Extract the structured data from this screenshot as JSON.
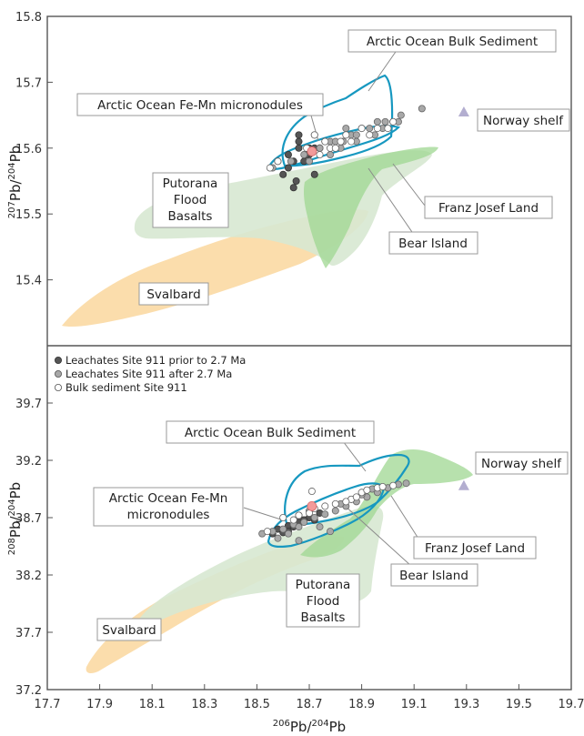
{
  "chart_data": [
    {
      "type": "scatter",
      "panel": "top",
      "ylabel": "207Pb/204Pb",
      "ylabel_parts": [
        "207",
        "Pb/",
        "204",
        "Pb"
      ],
      "xlim": [
        17.7,
        19.7
      ],
      "ylim": [
        15.3,
        15.8
      ],
      "yticks": [
        "15.4",
        "15.5",
        "15.6",
        "15.7",
        "15.8"
      ],
      "labels": {
        "bulk": "Arctic Ocean Bulk Sediment",
        "femn": "Arctic Ocean Fe-Mn micronodules",
        "norway": "Norway shelf",
        "putorana": [
          "Putorana",
          "Flood",
          "Basalts"
        ],
        "franz": "Franz Josef Land",
        "bear": "Bear Island",
        "svalbard": "Svalbard"
      },
      "series": [
        {
          "name": "Leachates Site 911 prior to 2.7 Ma",
          "points": [
            [
              18.66,
              15.62
            ],
            [
              18.7,
              15.6
            ],
            [
              18.62,
              15.59
            ],
            [
              18.68,
              15.58
            ],
            [
              18.66,
              15.61
            ],
            [
              18.7,
              15.59
            ],
            [
              18.64,
              15.58
            ],
            [
              18.72,
              15.6
            ],
            [
              18.58,
              15.58
            ],
            [
              18.62,
              15.57
            ],
            [
              18.74,
              15.6
            ],
            [
              18.65,
              15.55
            ],
            [
              18.72,
              15.56
            ],
            [
              18.66,
              15.6
            ],
            [
              18.69,
              15.59
            ],
            [
              18.6,
              15.56
            ],
            [
              18.64,
              15.54
            ],
            [
              18.76,
              15.61
            ]
          ]
        },
        {
          "name": "Leachates Site 911 after 2.7 Ma",
          "points": [
            [
              18.74,
              15.6
            ],
            [
              18.78,
              15.61
            ],
            [
              18.8,
              15.61
            ],
            [
              18.83,
              15.61
            ],
            [
              18.86,
              15.62
            ],
            [
              18.88,
              15.62
            ],
            [
              18.9,
              15.63
            ],
            [
              18.93,
              15.63
            ],
            [
              18.96,
              15.64
            ],
            [
              18.99,
              15.64
            ],
            [
              19.02,
              15.64
            ],
            [
              19.05,
              15.65
            ],
            [
              19.13,
              15.66
            ],
            [
              19.04,
              15.64
            ],
            [
              18.68,
              15.59
            ],
            [
              18.63,
              15.58
            ],
            [
              18.56,
              15.57
            ],
            [
              18.72,
              15.62
            ],
            [
              18.84,
              15.63
            ],
            [
              18.78,
              15.59
            ],
            [
              18.7,
              15.58
            ],
            [
              18.95,
              15.62
            ],
            [
              18.82,
              15.6
            ],
            [
              18.98,
              15.63
            ],
            [
              18.88,
              15.61
            ]
          ]
        },
        {
          "name": "Bulk sediment Site 911",
          "points": [
            [
              18.72,
              15.62
            ],
            [
              18.78,
              15.6
            ],
            [
              18.74,
              15.59
            ],
            [
              18.8,
              15.6
            ],
            [
              18.84,
              15.62
            ],
            [
              18.9,
              15.63
            ],
            [
              18.96,
              15.63
            ],
            [
              19.02,
              15.64
            ],
            [
              18.58,
              15.58
            ],
            [
              18.55,
              15.57
            ],
            [
              18.69,
              15.6
            ],
            [
              18.76,
              15.61
            ],
            [
              18.82,
              15.61
            ],
            [
              19.0,
              15.63
            ],
            [
              18.93,
              15.62
            ],
            [
              18.86,
              15.61
            ]
          ]
        },
        {
          "name": "Bear Island",
          "points": [
            [
              18.71,
              15.595
            ]
          ]
        },
        {
          "name": "Norway shelf",
          "points": [
            [
              19.29,
              15.655
            ]
          ]
        }
      ]
    },
    {
      "type": "scatter",
      "panel": "bottom",
      "xlabel": "206Pb/204Pb",
      "xlabel_parts": [
        "206",
        "Pb/",
        "204",
        "Pb"
      ],
      "ylabel": "208Pb/204Pb",
      "ylabel_parts": [
        "208",
        "Pb/",
        "204",
        "Pb"
      ],
      "xlim": [
        17.7,
        19.7
      ],
      "ylim": [
        37.2,
        40.2
      ],
      "xticks": [
        "17.7",
        "17.9",
        "18.1",
        "18.3",
        "18.5",
        "18.7",
        "18.9",
        "19.1",
        "19.3",
        "19.5",
        "19.7"
      ],
      "yticks": [
        "37.2",
        "37.7",
        "38.2",
        "38.7",
        "39.2",
        "39.7"
      ],
      "legend": [
        {
          "name": "Leachates Site 911 prior to 2.7 Ma",
          "color": "#555555"
        },
        {
          "name": "Leachates Site 911 after 2.7 Ma",
          "color": "#a8a8a8"
        },
        {
          "name": "Bulk sediment Site 911",
          "color": "#ffffff"
        }
      ],
      "labels": {
        "bulk": "Arctic Ocean Bulk Sediment",
        "femn": [
          "Arctic Ocean Fe-Mn",
          "micronodules"
        ],
        "norway": "Norway shelf",
        "putorana": [
          "Putorana",
          "Flood",
          "Basalts"
        ],
        "franz": "Franz Josef Land",
        "bear": "Bear Island",
        "svalbard": "Svalbard"
      },
      "series": [
        {
          "name": "Leachates Site 911 prior to 2.7 Ma",
          "points": [
            [
              18.58,
              38.6
            ],
            [
              18.62,
              38.63
            ],
            [
              18.66,
              38.66
            ],
            [
              18.7,
              38.7
            ],
            [
              18.64,
              38.62
            ],
            [
              18.6,
              38.57
            ],
            [
              18.68,
              38.68
            ],
            [
              18.74,
              38.74
            ],
            [
              18.56,
              38.56
            ],
            [
              18.66,
              38.72
            ],
            [
              18.72,
              38.68
            ],
            [
              18.62,
              38.58
            ]
          ]
        },
        {
          "name": "Leachates Site 911 after 2.7 Ma",
          "points": [
            [
              18.56,
              38.58
            ],
            [
              18.6,
              38.6
            ],
            [
              18.64,
              38.64
            ],
            [
              18.68,
              38.66
            ],
            [
              18.72,
              38.7
            ],
            [
              18.76,
              38.73
            ],
            [
              18.8,
              38.76
            ],
            [
              18.84,
              38.8
            ],
            [
              18.88,
              38.84
            ],
            [
              18.92,
              38.88
            ],
            [
              18.96,
              38.92
            ],
            [
              19.0,
              38.96
            ],
            [
              19.04,
              38.99
            ],
            [
              19.07,
              39.0
            ],
            [
              18.58,
              38.52
            ],
            [
              18.62,
              38.56
            ],
            [
              18.66,
              38.62
            ],
            [
              18.78,
              38.58
            ],
            [
              18.7,
              38.76
            ],
            [
              18.82,
              38.82
            ],
            [
              18.86,
              38.86
            ],
            [
              18.94,
              38.95
            ],
            [
              18.66,
              38.5
            ],
            [
              18.74,
              38.62
            ],
            [
              18.52,
              38.56
            ],
            [
              18.9,
              38.9
            ]
          ]
        },
        {
          "name": "Bulk sediment Site 911",
          "points": [
            [
              18.72,
              38.78
            ],
            [
              18.76,
              38.8
            ],
            [
              18.8,
              38.82
            ],
            [
              18.86,
              38.86
            ],
            [
              18.9,
              38.92
            ],
            [
              18.96,
              38.96
            ],
            [
              19.02,
              38.98
            ],
            [
              18.6,
              38.7
            ],
            [
              18.66,
              38.72
            ],
            [
              18.84,
              38.84
            ],
            [
              18.92,
              38.94
            ],
            [
              18.7,
              38.74
            ],
            [
              18.54,
              38.58
            ],
            [
              18.64,
              38.68
            ],
            [
              18.71,
              38.93
            ],
            [
              18.88,
              38.88
            ],
            [
              18.98,
              38.97
            ]
          ]
        },
        {
          "name": "Bear Island",
          "points": [
            [
              18.71,
              38.8
            ]
          ]
        },
        {
          "name": "Norway shelf",
          "points": [
            [
              19.29,
              38.98
            ]
          ]
        }
      ]
    }
  ]
}
